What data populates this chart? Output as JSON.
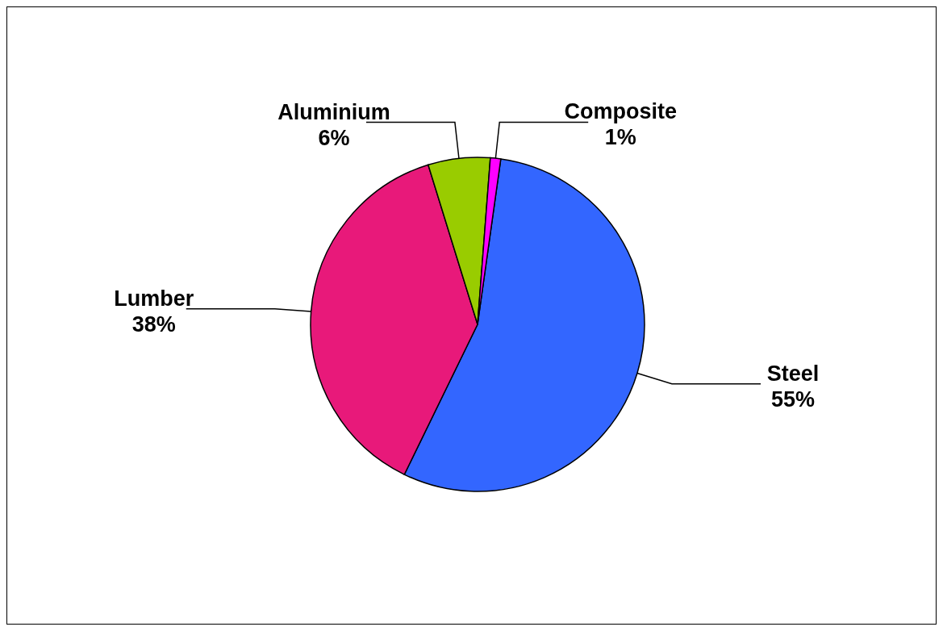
{
  "chart_data": {
    "type": "pie",
    "categories": [
      "Steel",
      "Lumber",
      "Aluminium",
      "Composite"
    ],
    "values": [
      55,
      38,
      6,
      1
    ],
    "value_labels": [
      "55%",
      "38%",
      "6%",
      "1%"
    ],
    "colors": [
      "#3366ff",
      "#e8197a",
      "#99cc00",
      "#ff00ff"
    ],
    "legend": false
  }
}
